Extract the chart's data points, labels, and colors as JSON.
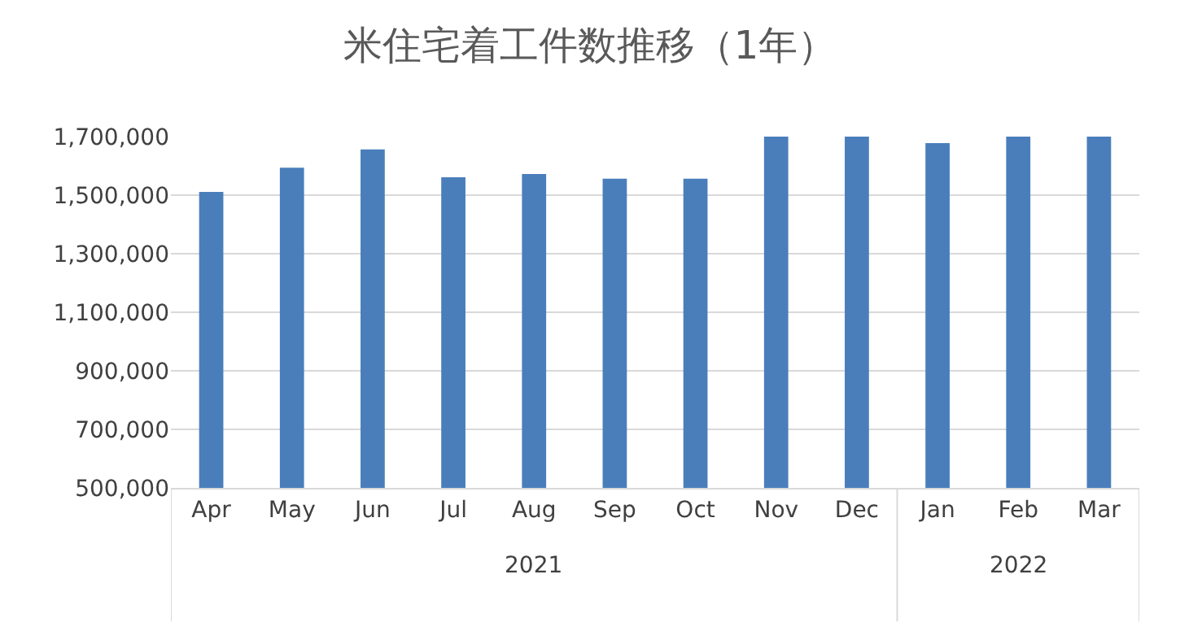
{
  "chart_data": {
    "type": "bar",
    "title": "米住宅着工件数推移（1年）",
    "categories": [
      "Apr",
      "May",
      "Jun",
      "Jul",
      "Aug",
      "Sep",
      "Oct",
      "Nov",
      "Dec",
      "Jan",
      "Feb",
      "Mar"
    ],
    "values": [
      1511000,
      1594000,
      1656000,
      1561000,
      1572000,
      1556000,
      1556000,
      1700000,
      1700000,
      1678000,
      1700000,
      1700000
    ],
    "color": "#4a7ebb",
    "ylim": [
      500000,
      1700000
    ],
    "yticks": [
      {
        "value": 500000,
        "label": "500,000"
      },
      {
        "value": 700000,
        "label": "700,000"
      },
      {
        "value": 900000,
        "label": "900,000"
      },
      {
        "value": 1100000,
        "label": "1,100,000"
      },
      {
        "value": 1300000,
        "label": "1,300,000"
      },
      {
        "value": 1500000,
        "label": "1,500,000"
      },
      {
        "value": 1700000,
        "label": "1,700,000"
      }
    ],
    "grid": "y",
    "annotations": [
      "2021",
      "2022"
    ]
  }
}
